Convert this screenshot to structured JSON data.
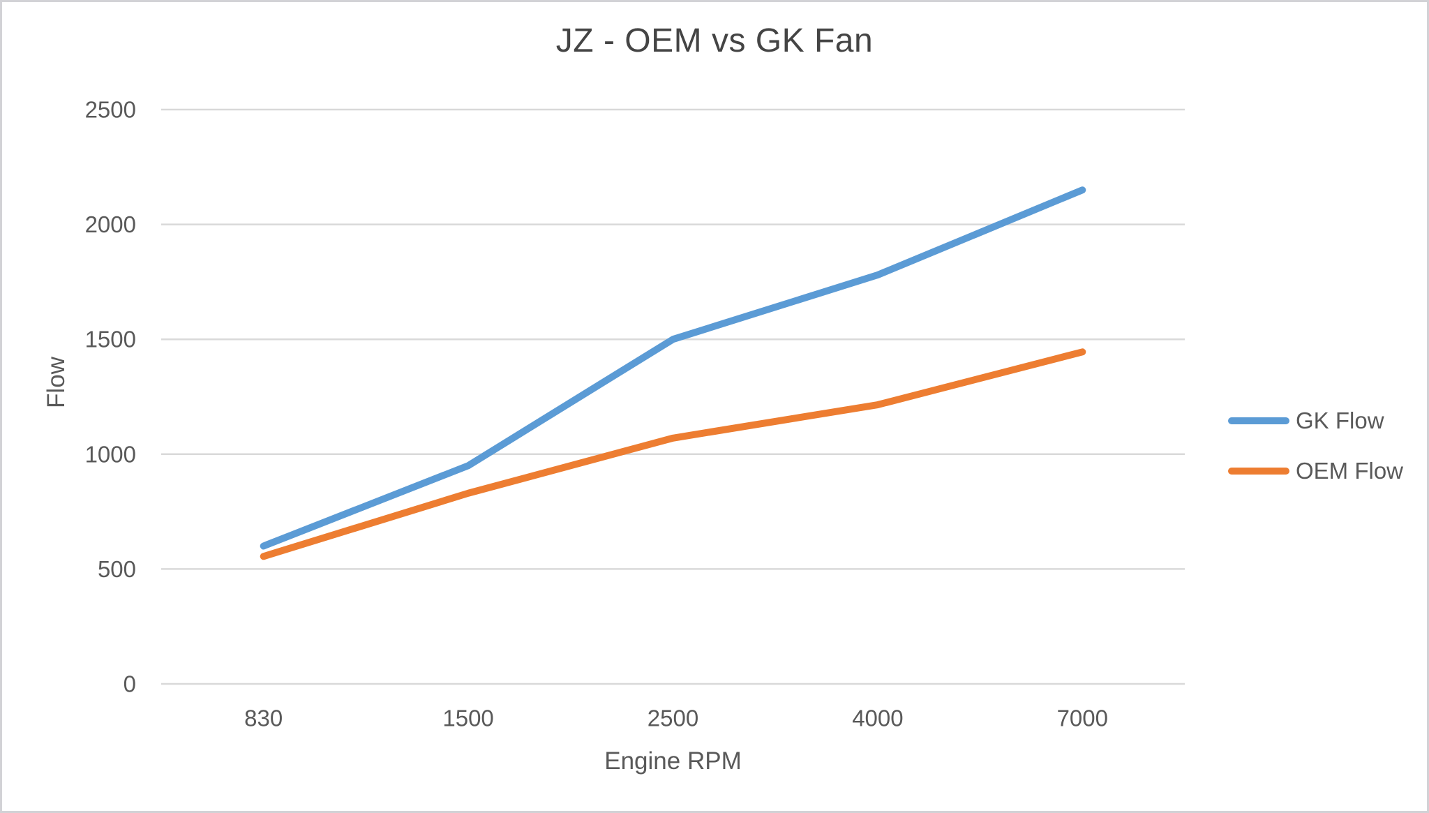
{
  "chart_data": {
    "type": "line",
    "title": "JZ - OEM vs GK Fan",
    "xlabel": "Engine RPM",
    "ylabel": "Flow",
    "categories": [
      "830",
      "1500",
      "2500",
      "4000",
      "7000"
    ],
    "series": [
      {
        "name": "GK Flow",
        "color": "#5B9BD5",
        "values": [
          600,
          950,
          1500,
          1780,
          2150
        ]
      },
      {
        "name": "OEM Flow",
        "color": "#ED7D31",
        "values": [
          555,
          830,
          1070,
          1215,
          1445
        ]
      }
    ],
    "ylim": [
      0,
      2500
    ],
    "yticks": [
      0,
      500,
      1000,
      1500,
      2000,
      2500
    ],
    "grid": "horizontal",
    "legend_position": "right"
  },
  "colors": {
    "gridline": "#D9D9D9",
    "axis_text": "#595959",
    "title_text": "#444444",
    "background": "#FFFFFF",
    "border": "#D2D2D6"
  }
}
